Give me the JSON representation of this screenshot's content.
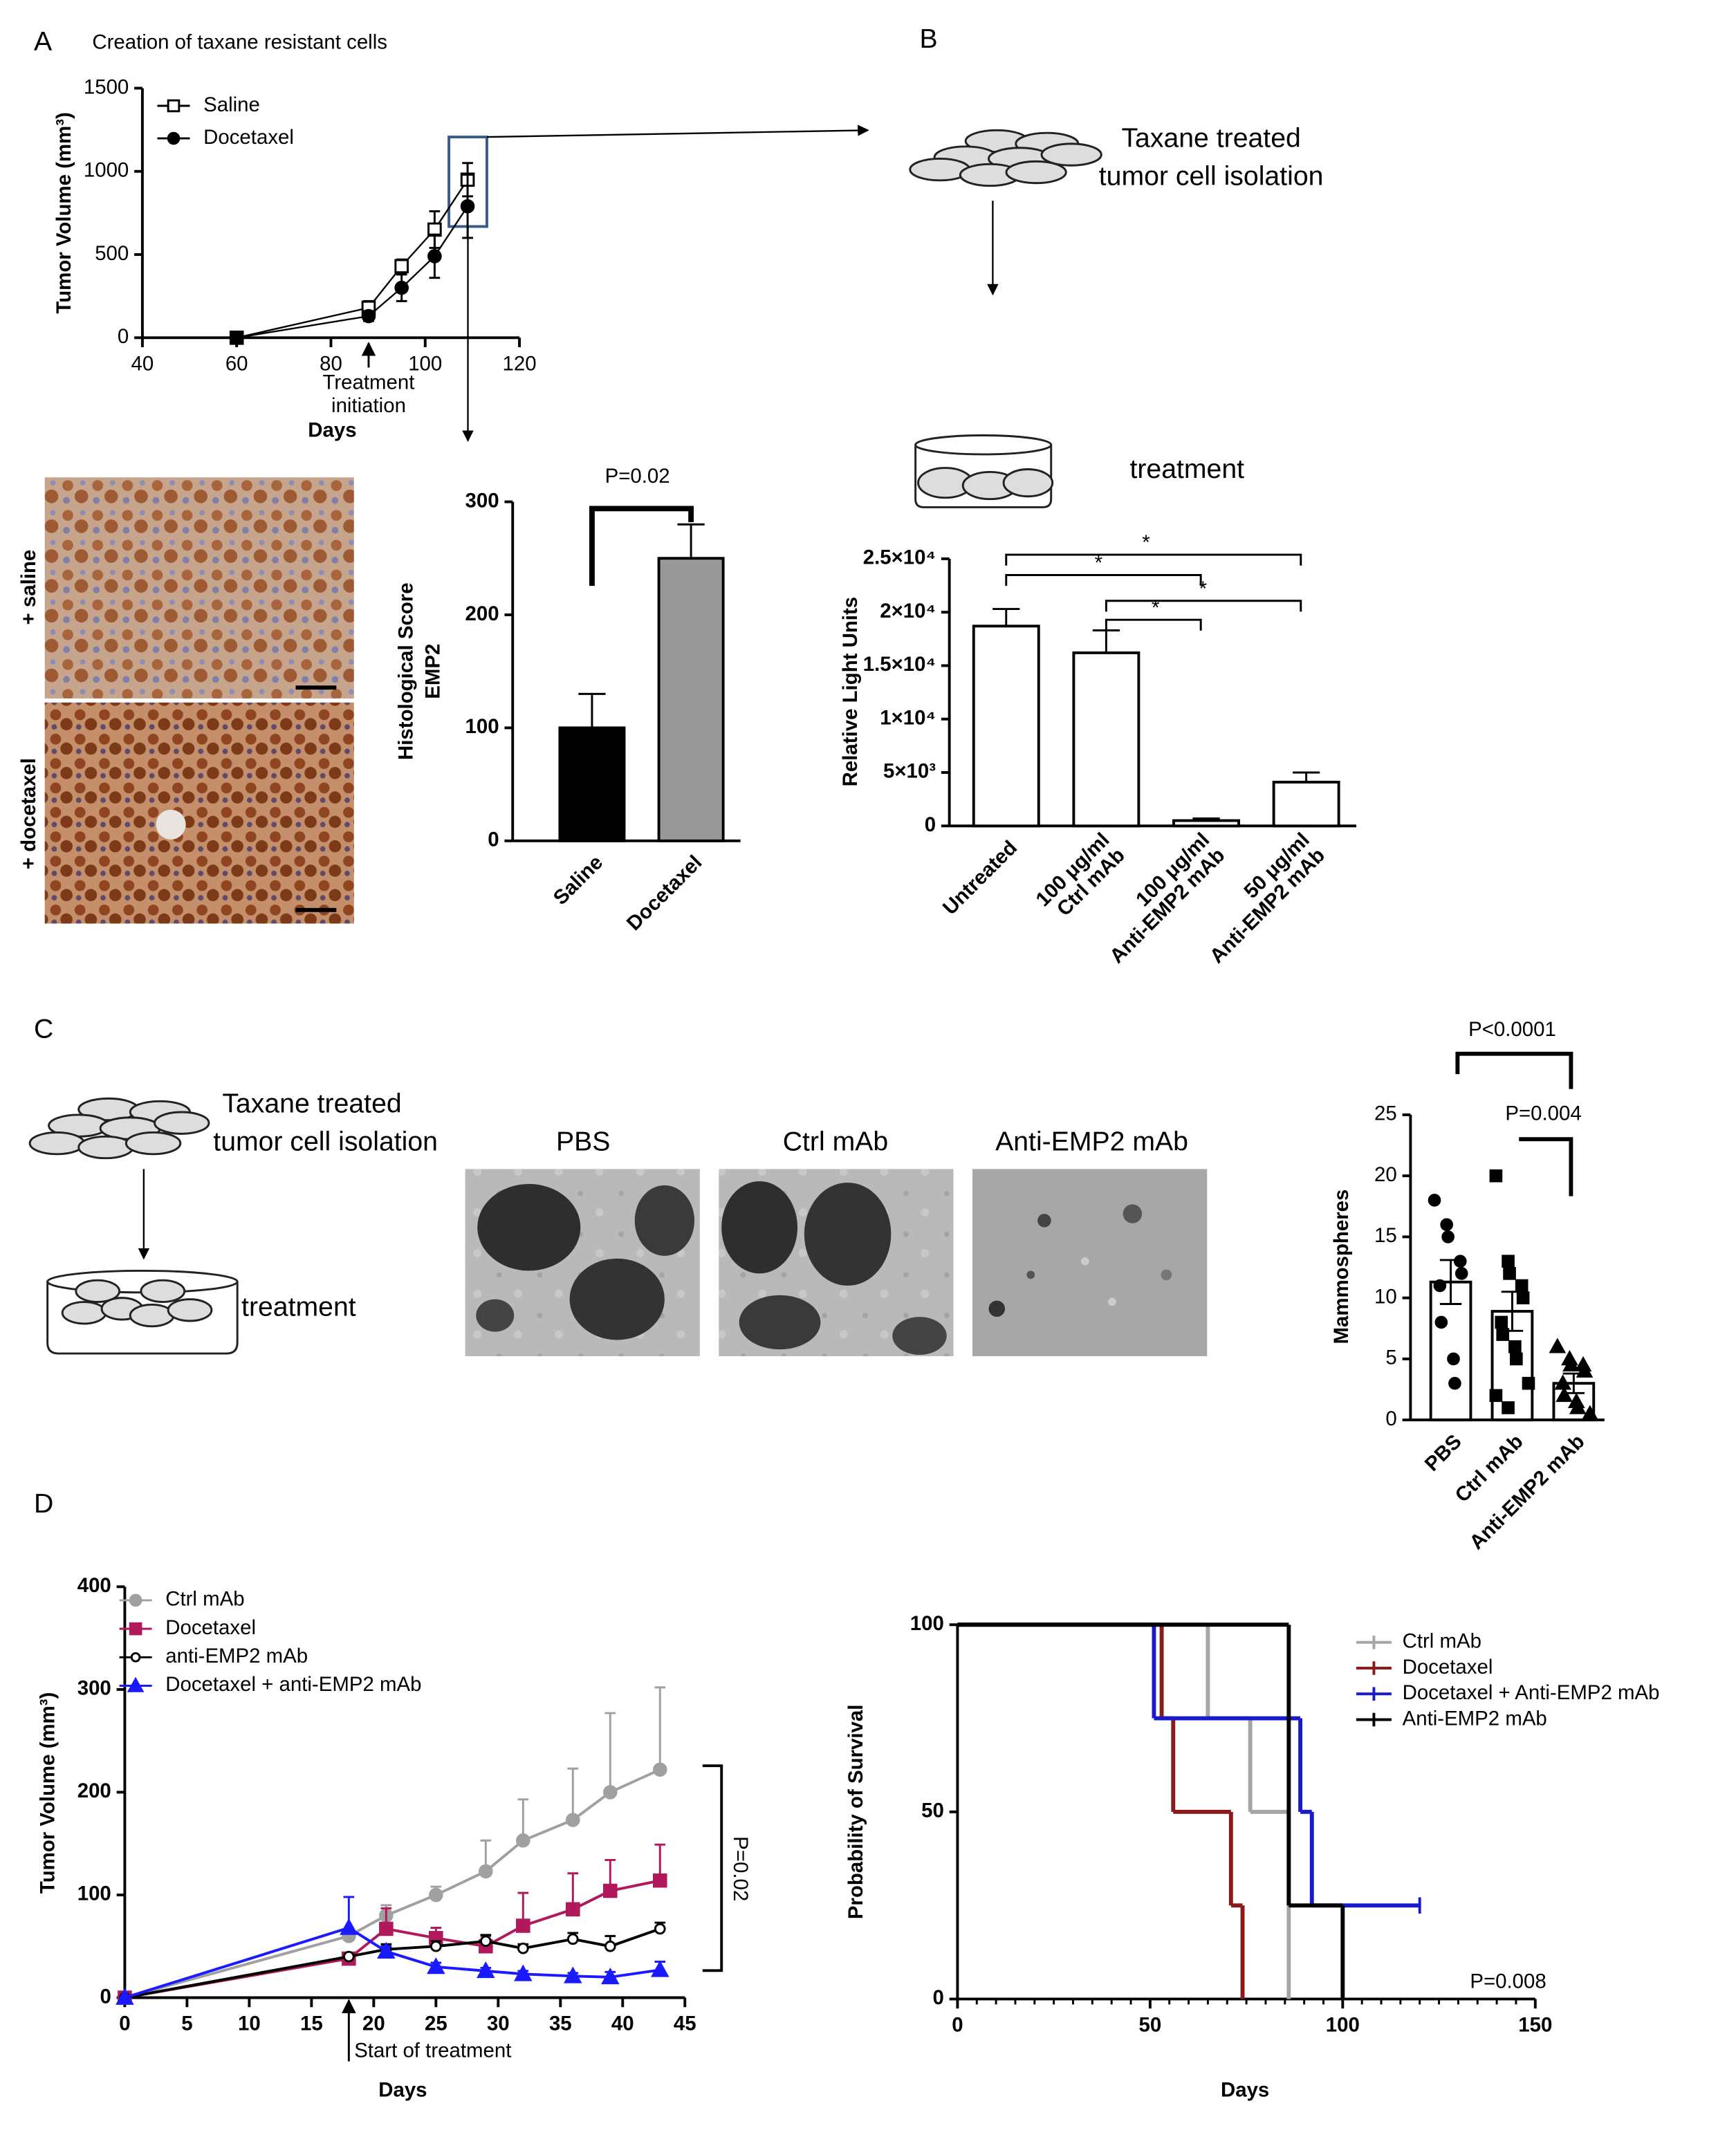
{
  "figure": {
    "panels": [
      "A",
      "B",
      "C",
      "D"
    ],
    "b_diagram": [
      "Taxane treated",
      "tumor cell isolation"
    ],
    "b_treatment": "treatment",
    "a_images": [
      "+ saline",
      "+ docetaxel"
    ],
    "c_diagram": [
      "Taxane treated",
      "tumor cell isolation"
    ],
    "c_treatment": "treatment",
    "c_images": [
      "PBS",
      "Ctrl mAb",
      "Anti-EMP2 mAb"
    ]
  },
  "chart_data": [
    {
      "type": "line",
      "title": "Creation of taxane resistant cells",
      "xlabel": "Days",
      "ylabel": "Tumor Volume (mm³)",
      "annotation": [
        "Treatment",
        "initiation"
      ],
      "error_bars": "both",
      "series": [
        {
          "name": "Saline",
          "color": "#000000",
          "marker": "open-square",
          "x": [
            60,
            88,
            95,
            102,
            109
          ],
          "values": [
            0,
            180,
            430,
            650,
            950
          ],
          "errors": [
            0,
            40,
            40,
            110,
            100
          ]
        },
        {
          "name": "Docetaxel",
          "color": "#000000",
          "marker": "circle",
          "x": [
            60,
            88,
            95,
            102,
            109
          ],
          "values": [
            0,
            130,
            300,
            490,
            790
          ],
          "errors": [
            0,
            30,
            80,
            130,
            190
          ]
        }
      ],
      "xlim": [
        40,
        120
      ],
      "xticks": [
        40,
        60,
        80,
        100,
        120
      ],
      "ylim": [
        0,
        1500
      ],
      "yticks": [
        0,
        500,
        1000,
        1500
      ]
    },
    {
      "type": "bar",
      "ylabel": [
        "Histological Score",
        "EMP2"
      ],
      "categories": [
        "Saline",
        "Docetaxel"
      ],
      "values": [
        100,
        250
      ],
      "errors": [
        30,
        30
      ],
      "colors": [
        "#000000",
        "#999999"
      ],
      "error_bars": "up",
      "ylim": [
        0,
        300
      ],
      "yticks": [
        0,
        100,
        200,
        300
      ],
      "annotations": [
        "P=0.02"
      ]
    },
    {
      "type": "bar",
      "ylabel": "Relative Light Units",
      "categories": [
        [
          "Untreated"
        ],
        [
          "100 μg/ml",
          "Ctrl mAb"
        ],
        [
          "100 μg/ml",
          "Anti-EMP2 mAb"
        ],
        [
          "50 μg/ml",
          "Anti-EMP2 mAb"
        ]
      ],
      "values": [
        18700,
        16200,
        500,
        4100
      ],
      "errors": [
        1600,
        2100,
        200,
        900
      ],
      "colors": [
        "#ffffff",
        "#ffffff",
        "#ffffff",
        "#ffffff"
      ],
      "error_bars": "both",
      "ylim": [
        0,
        25000
      ],
      "yticks": [
        0,
        {
          "value": 5000,
          "label": "5×10³"
        },
        {
          "value": 10000,
          "label": "1×10⁴"
        },
        {
          "value": 15000,
          "label": "1.5×10⁴"
        },
        {
          "value": 20000,
          "label": "2×10⁴"
        },
        {
          "value": 25000,
          "label": "2.5×10⁴"
        }
      ],
      "annotations": [
        "*",
        "*",
        "*",
        "*"
      ]
    },
    {
      "type": "bar_scatter",
      "ylabel": "Mammospheres",
      "categories": [
        "PBS",
        "Ctrl mAb",
        "Anti-EMP2 mAb"
      ],
      "values": [
        11.3,
        8.9,
        3.0
      ],
      "errors": [
        1.8,
        1.6,
        0.8
      ],
      "colors": [
        "#ffffff",
        "#ffffff",
        "#ffffff"
      ],
      "error_bars": "both",
      "markers": [
        "circle",
        "square",
        "triangle"
      ],
      "points": [
        [
          18,
          16,
          15,
          13,
          12,
          11,
          8,
          5,
          3
        ],
        [
          20,
          13,
          12,
          11,
          10,
          8,
          7,
          6,
          5,
          3,
          2,
          1
        ],
        [
          6,
          5,
          4.5,
          4.5,
          4,
          3,
          2,
          1.5,
          1,
          0.5
        ]
      ],
      "ylim": [
        0,
        25
      ],
      "yticks": [
        0,
        5,
        10,
        15,
        20,
        25
      ],
      "annotations": [
        "P<0.0001",
        "P=0.004"
      ]
    },
    {
      "type": "line",
      "xlabel": "Days",
      "ylabel": "Tumor Volume (mm³)",
      "annotations": [
        "Start of treatment",
        "P=0.02"
      ],
      "error_bars": "up",
      "series": [
        {
          "name": "Ctrl mAb",
          "color": "#a0a0a0",
          "marker": "circle",
          "x": [
            0,
            18,
            21,
            25,
            29,
            32,
            36,
            39,
            43
          ],
          "values": [
            0,
            60,
            80,
            100,
            123,
            153,
            173,
            200,
            222
          ],
          "errors": [
            0,
            0,
            10,
            8,
            30,
            40,
            50,
            77,
            80
          ]
        },
        {
          "name": "Docetaxel",
          "color": "#b0195b",
          "marker": "square",
          "x": [
            0,
            18,
            21,
            25,
            29,
            32,
            36,
            39,
            43
          ],
          "values": [
            0,
            38,
            67,
            58,
            50,
            70,
            86,
            104,
            114
          ],
          "errors": [
            0,
            0,
            20,
            10,
            10,
            32,
            35,
            30,
            35
          ]
        },
        {
          "name": "anti-EMP2 mAb",
          "color": "#000000",
          "marker": "open-circle",
          "x": [
            0,
            18,
            21,
            25,
            29,
            32,
            36,
            39,
            43
          ],
          "values": [
            0,
            40,
            47,
            50,
            55,
            48,
            57,
            50,
            67
          ],
          "errors": [
            0,
            0,
            5,
            5,
            6,
            4,
            6,
            10,
            6
          ]
        },
        {
          "name": "Docetaxel + anti-EMP2 mAb",
          "color": "#1a1aff",
          "marker": "triangle",
          "x": [
            0,
            18,
            21,
            25,
            29,
            32,
            36,
            39,
            43
          ],
          "values": [
            0,
            68,
            45,
            30,
            26,
            23,
            21,
            20,
            27
          ],
          "errors": [
            0,
            30,
            5,
            4,
            3,
            3,
            3,
            5,
            8
          ]
        }
      ],
      "xlim": [
        0,
        45
      ],
      "xticks": [
        0,
        5,
        10,
        15,
        20,
        25,
        30,
        35,
        40,
        45
      ],
      "ylim": [
        0,
        400
      ],
      "yticks": [
        0,
        100,
        200,
        300,
        400
      ]
    },
    {
      "type": "step",
      "xlabel": "Days",
      "ylabel": "Probability of Survival",
      "annotations": [
        "P=0.008"
      ],
      "series": [
        {
          "name": "Ctrl mAb",
          "color": "#a6a6a6",
          "x": [
            0,
            65,
            76,
            86
          ],
          "values": [
            100,
            75,
            50,
            0
          ]
        },
        {
          "name": "Docetaxel",
          "color": "#8b1a1a",
          "x": [
            0,
            53,
            56,
            71,
            74
          ],
          "values": [
            100,
            75,
            50,
            25,
            0
          ]
        },
        {
          "name": "Docetaxel + Anti-EMP2 mAb",
          "color": "#1a1acc",
          "x": [
            0,
            51,
            89,
            92,
            120
          ],
          "values": [
            100,
            75,
            50,
            25,
            25
          ]
        },
        {
          "name": "Anti-EMP2 mAb",
          "color": "#000000",
          "x": [
            0,
            86,
            100
          ],
          "values": [
            100,
            25,
            0
          ]
        }
      ],
      "xlim": [
        0,
        150
      ],
      "xticks": [
        0,
        50,
        100,
        150
      ],
      "ylim": [
        0,
        100
      ],
      "yticks": [
        0,
        50,
        100
      ]
    }
  ]
}
